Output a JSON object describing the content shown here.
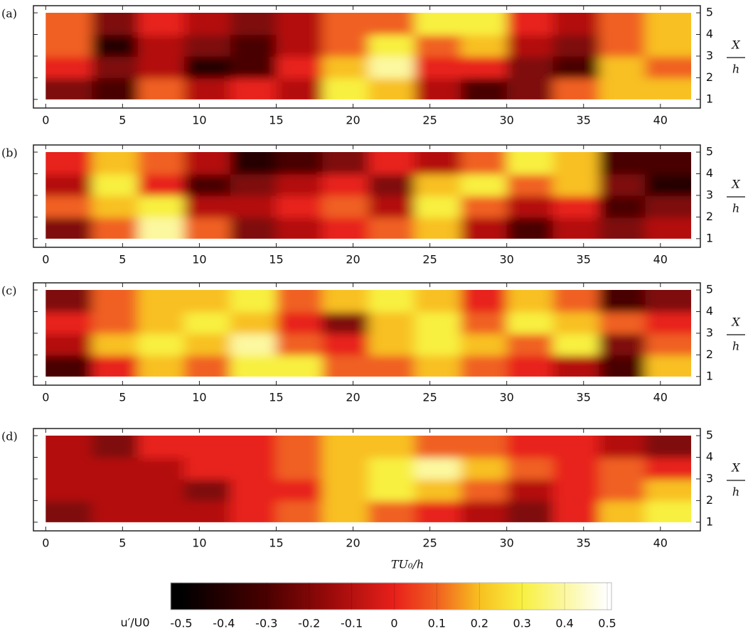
{
  "chart_data": [
    {
      "type": "heatmap",
      "panel_label": "(a)",
      "ylabel_top": "X",
      "ylabel_bottom": "h",
      "x": [
        1.5,
        4.5,
        7.5,
        10.5,
        13.5,
        16.5,
        19.5,
        22.5,
        25.5,
        28.5,
        31.5,
        34.5,
        37.5,
        40.5
      ],
      "y": [
        1.5,
        2.5,
        3.5,
        4.5
      ],
      "z": [
        [
          -0.2,
          -0.3,
          0.1,
          -0.1,
          0,
          -0.1,
          0.3,
          0.2,
          -0.1,
          -0.3,
          -0.2,
          0.1,
          0.2,
          0.2
        ],
        [
          0,
          -0.2,
          -0.1,
          -0.4,
          -0.3,
          0,
          0.2,
          0.4,
          0,
          0,
          -0.2,
          -0.3,
          0.2,
          0.1
        ],
        [
          0.1,
          -0.4,
          -0.1,
          -0.2,
          -0.3,
          -0.1,
          0.1,
          0.3,
          0.1,
          0.2,
          -0.1,
          -0.2,
          0.1,
          0.2
        ],
        [
          0.1,
          -0.2,
          0,
          -0.1,
          -0.2,
          -0.1,
          0.1,
          0.1,
          0.3,
          0.3,
          0,
          -0.1,
          0.1,
          0.2
        ]
      ],
      "xlim": [
        -0.8,
        42.6
      ],
      "ylim": [
        0.6,
        5.33
      ],
      "xticks": [
        0,
        5,
        10,
        15,
        20,
        25,
        30,
        35,
        40
      ],
      "yticks": [
        1,
        2,
        3,
        4,
        5
      ]
    },
    {
      "type": "heatmap",
      "panel_label": "(b)",
      "ylabel_top": "X",
      "ylabel_bottom": "h",
      "x": [
        1.5,
        4.5,
        7.5,
        10.5,
        13.5,
        16.5,
        19.5,
        22.5,
        25.5,
        28.5,
        31.5,
        34.5,
        37.5,
        40.5
      ],
      "y": [
        1.5,
        2.5,
        3.5,
        4.5
      ],
      "z": [
        [
          -0.2,
          0.1,
          0.4,
          0.1,
          -0.2,
          -0.1,
          0,
          0.1,
          0.2,
          -0.1,
          -0.3,
          -0.1,
          -0.2,
          -0.1
        ],
        [
          0.1,
          0.2,
          0.3,
          -0.1,
          -0.1,
          0,
          0.1,
          -0.1,
          0.3,
          0.1,
          -0.1,
          0,
          -0.3,
          -0.2
        ],
        [
          -0.1,
          0.3,
          0,
          -0.3,
          -0.2,
          -0.1,
          0,
          -0.2,
          0.2,
          0.3,
          0.1,
          0.2,
          -0.2,
          -0.4
        ],
        [
          0,
          0.2,
          0.1,
          -0.1,
          -0.4,
          -0.3,
          -0.2,
          0,
          -0.1,
          0.1,
          0.3,
          0.2,
          -0.3,
          -0.3
        ]
      ],
      "xlim": [
        -0.8,
        42.6
      ],
      "ylim": [
        0.6,
        5.33
      ],
      "xticks": [
        0,
        5,
        10,
        15,
        20,
        25,
        30,
        35,
        40
      ],
      "yticks": [
        1,
        2,
        3,
        4,
        5
      ]
    },
    {
      "type": "heatmap",
      "panel_label": "(c)",
      "ylabel_top": "X",
      "ylabel_bottom": "h",
      "x": [
        1.5,
        4.5,
        7.5,
        10.5,
        13.5,
        16.5,
        19.5,
        22.5,
        25.5,
        28.5,
        31.5,
        34.5,
        37.5,
        40.5
      ],
      "y": [
        1.5,
        2.5,
        3.5,
        4.5
      ],
      "z": [
        [
          -0.3,
          0,
          0.2,
          0.1,
          0.3,
          0.3,
          0.1,
          0.1,
          0.2,
          0.1,
          0,
          -0.1,
          -0.3,
          0.2
        ],
        [
          -0.1,
          0.2,
          0.3,
          0.2,
          0.4,
          0.1,
          0,
          0.2,
          0.3,
          0.2,
          0.1,
          0.3,
          -0.2,
          0.1
        ],
        [
          0,
          0.1,
          0.2,
          0.3,
          0.2,
          0,
          -0.2,
          0.2,
          0.3,
          0.1,
          0.3,
          0.2,
          0.1,
          0
        ],
        [
          -0.2,
          0.1,
          0.2,
          0.2,
          0.3,
          0.1,
          0.2,
          0.3,
          0.2,
          0,
          0.2,
          0.1,
          -0.3,
          -0.2
        ]
      ],
      "xlim": [
        -0.8,
        42.6
      ],
      "ylim": [
        0.6,
        5.33
      ],
      "xticks": [
        0,
        5,
        10,
        15,
        20,
        25,
        30,
        35,
        40
      ],
      "yticks": [
        1,
        2,
        3,
        4,
        5
      ]
    },
    {
      "type": "heatmap",
      "panel_label": "(d)",
      "ylabel_top": "X",
      "ylabel_bottom": "h",
      "xlabel": "TU₀/h",
      "x": [
        1.5,
        4.5,
        7.5,
        10.5,
        13.5,
        16.5,
        19.5,
        22.5,
        25.5,
        28.5,
        31.5,
        34.5,
        37.5,
        40.5
      ],
      "y": [
        1.5,
        2.5,
        3.5,
        4.5
      ],
      "z": [
        [
          -0.2,
          -0.1,
          -0.1,
          -0.1,
          0,
          0.1,
          0.2,
          0.1,
          0,
          -0.1,
          -0.2,
          0,
          0.2,
          0.3
        ],
        [
          -0.1,
          -0.1,
          -0.1,
          -0.2,
          0,
          0,
          0.2,
          0.3,
          0.2,
          0.1,
          -0.1,
          0,
          0.1,
          0.2
        ],
        [
          -0.1,
          -0.1,
          -0.1,
          0,
          0,
          0.1,
          0.2,
          0.3,
          0.4,
          0.2,
          0.1,
          0,
          0.1,
          0
        ],
        [
          -0.1,
          -0.2,
          0,
          0,
          0,
          0.1,
          0.2,
          0.2,
          0.1,
          0.1,
          0,
          0,
          -0.1,
          -0.2
        ]
      ],
      "xlim": [
        -0.8,
        42.6
      ],
      "ylim": [
        0.6,
        5.33
      ],
      "xticks": [
        0,
        5,
        10,
        15,
        20,
        25,
        30,
        35,
        40
      ],
      "yticks": [
        1,
        2,
        3,
        4,
        5
      ]
    },
    {
      "type": "colorbar",
      "label": "u′/U0",
      "lim": [
        -0.525,
        0.51
      ],
      "ticks": [
        -0.5,
        -0.4,
        -0.3,
        -0.2,
        -0.1,
        0,
        0.1,
        0.2,
        0.3,
        0.4,
        0.5
      ],
      "colormap": [
        [
          -0.5,
          "#000000"
        ],
        [
          -0.3,
          "#4a0000"
        ],
        [
          -0.15,
          "#9a0a0a"
        ],
        [
          0,
          "#e8201a"
        ],
        [
          0.1,
          "#f06020"
        ],
        [
          0.2,
          "#f8c020"
        ],
        [
          0.3,
          "#f8f040"
        ],
        [
          0.5,
          "#ffffff"
        ]
      ]
    }
  ]
}
